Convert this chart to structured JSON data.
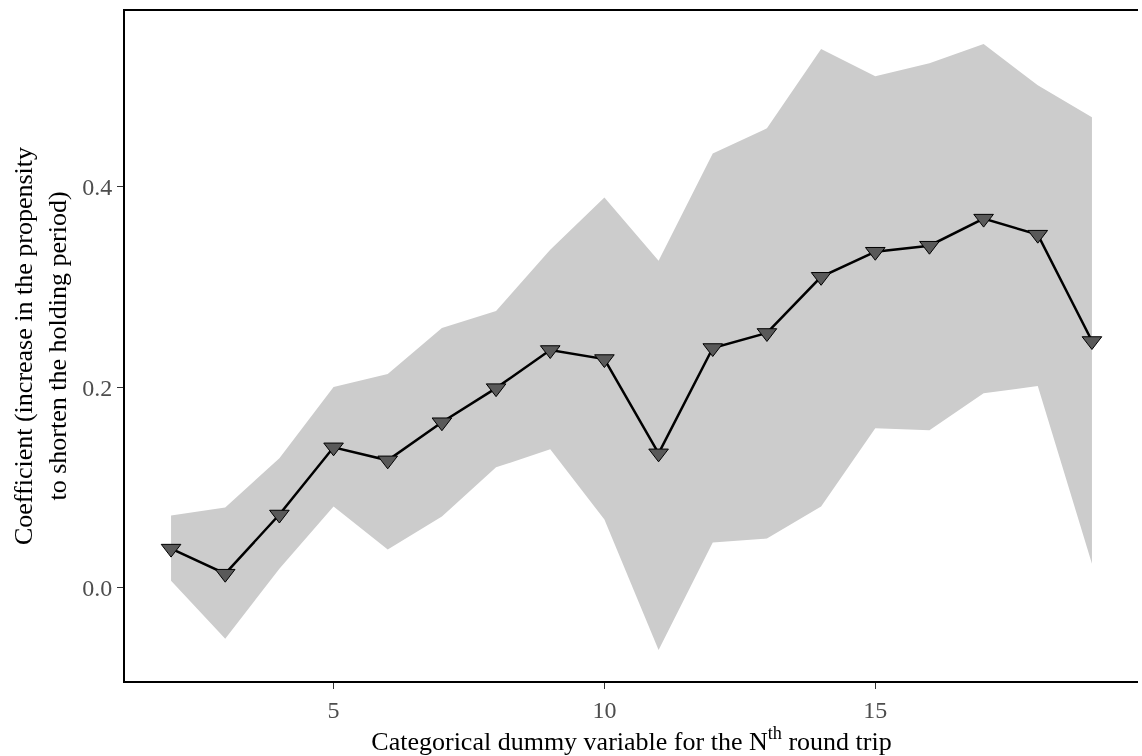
{
  "chart_data": {
    "type": "line",
    "xlabel": "Categorical dummy variable for the N$^{th}$ round trip",
    "ylabel": "Coefficient (increase in the propensity\nto shorten the holding period)",
    "x": [
      2,
      3,
      4,
      5,
      6,
      7,
      8,
      9,
      10,
      11,
      12,
      13,
      14,
      15,
      16,
      17,
      18,
      19
    ],
    "series": [
      {
        "color": "#000000",
        "values": [
          0.039,
          0.014,
          0.073,
          0.14,
          0.127,
          0.165,
          0.199,
          0.237,
          0.228,
          0.134,
          0.239,
          0.254,
          0.31,
          0.335,
          0.341,
          0.368,
          0.352,
          0.246
        ],
        "lower": [
          0.007,
          -0.051,
          0.019,
          0.081,
          0.038,
          0.071,
          0.12,
          0.138,
          0.068,
          -0.062,
          0.045,
          0.049,
          0.081,
          0.159,
          0.157,
          0.194,
          0.201,
          0.024
        ],
        "upper": [
          0.072,
          0.08,
          0.129,
          0.2,
          0.213,
          0.259,
          0.276,
          0.337,
          0.389,
          0.326,
          0.433,
          0.458,
          0.537,
          0.51,
          0.523,
          0.542,
          0.501,
          0.469
        ]
      }
    ],
    "xlim": [
      1.15,
      19.85
    ],
    "xticks": [
      5,
      10,
      15
    ],
    "ylim": [
      -0.093,
      0.575
    ],
    "yticks": [
      {
        "value": 0,
        "label": "0.0"
      },
      {
        "value": 0.2,
        "label": "0.2"
      },
      {
        "value": 0.4,
        "label": "0.4"
      }
    ],
    "marker": "triangle",
    "line_style": "solid"
  }
}
